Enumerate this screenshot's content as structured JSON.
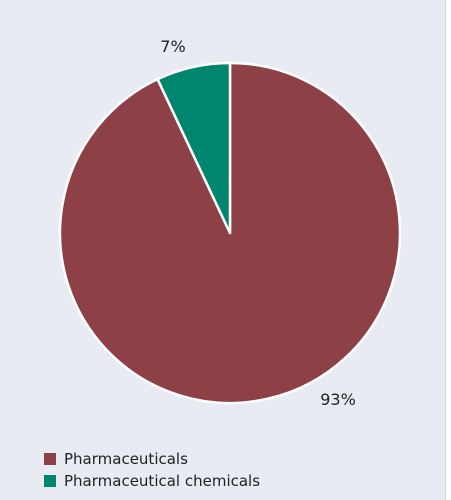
{
  "chart_data": {
    "type": "pie",
    "start_angle_deg": 0,
    "direction": "clockwise",
    "slices": [
      {
        "label": "Pharmaceuticals",
        "value": 93,
        "display": "93%",
        "color": "#8e4047"
      },
      {
        "label": "Pharmaceutical chemicals",
        "value": 7,
        "display": "7%",
        "color": "#00856f"
      }
    ],
    "legend": {
      "position": "bottom-left",
      "items": [
        "Pharmaceuticals",
        "Pharmaceutical chemicals"
      ]
    },
    "title": ""
  }
}
